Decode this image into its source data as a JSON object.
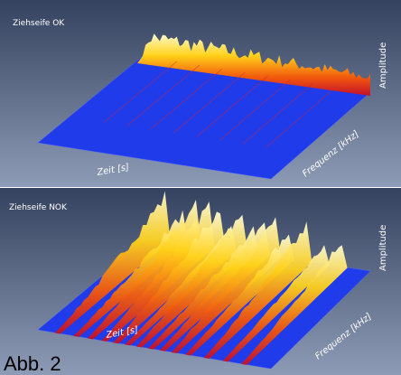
{
  "panels": [
    {
      "title": "Ziehseife OK",
      "z_label": "Amplitude",
      "x_label": "Zeit [s]",
      "y_label": "Frequenz [kHz]"
    },
    {
      "title": "Ziehseife NOK",
      "z_label": "Amplitude",
      "x_label": "Zeit [s]",
      "y_label": "Frequenz [kHz]"
    }
  ],
  "caption": "Abb. 2"
}
